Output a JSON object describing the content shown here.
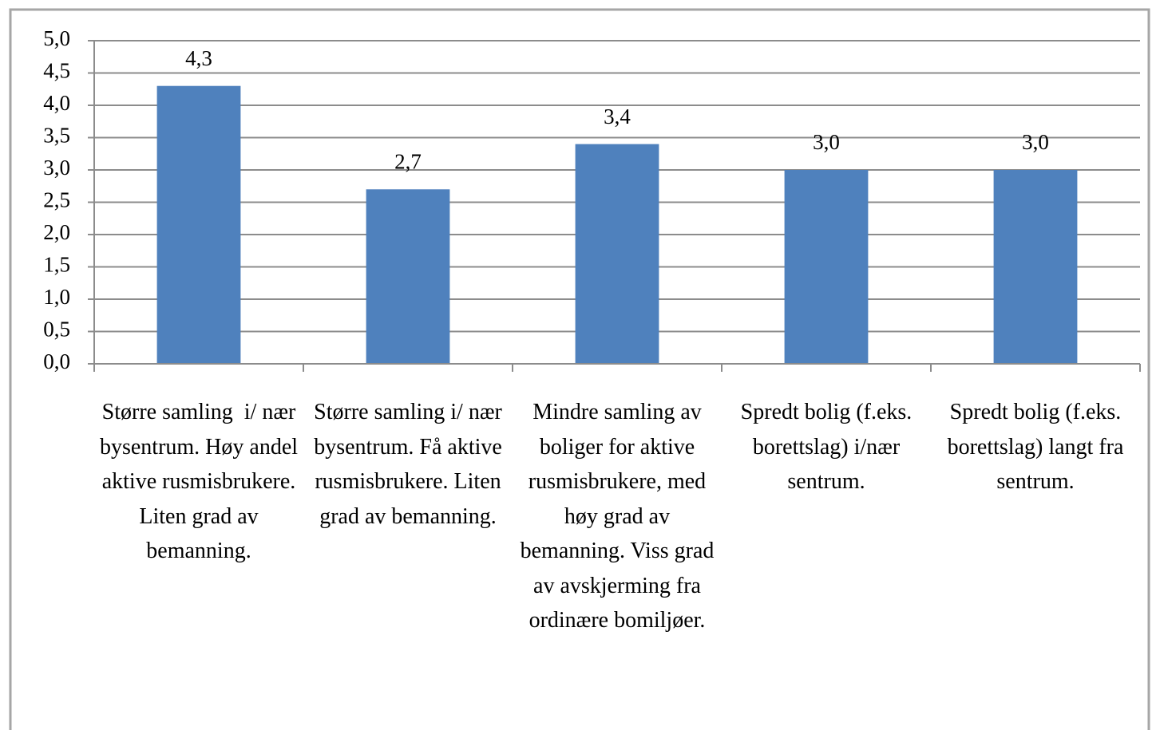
{
  "chart_data": {
    "type": "bar",
    "categories": [
      "Større samling  i/ nær bysentrum. Høy andel aktive rusmisbrukere. Liten grad av bemanning.",
      "Større samling i/ nær bysentrum. Få aktive rusmisbrukere. Liten grad av bemanning.",
      "Mindre samling av boliger for aktive rusmisbrukere, med høy grad av bemanning. Viss grad av avskjerming fra ordinære bomiljøer.",
      "Spredt bolig (f.eks. borettslag) i/nær sentrum.",
      "Spredt bolig (f.eks. borettslag) langt fra sentrum."
    ],
    "values": [
      4.3,
      2.7,
      3.4,
      3.0,
      3.0
    ],
    "value_labels": [
      "4,3",
      "2,7",
      "3,4",
      "3,0",
      "3,0"
    ],
    "color": "#4f81bd",
    "ylim": [
      0,
      5
    ],
    "yticks": [
      {
        "value": 0,
        "label": "0,0"
      },
      {
        "value": 0.5,
        "label": "0,5"
      },
      {
        "value": 1,
        "label": "1,0"
      },
      {
        "value": 1.5,
        "label": "1,5"
      },
      {
        "value": 2,
        "label": "2,0"
      },
      {
        "value": 2.5,
        "label": "2,5"
      },
      {
        "value": 3,
        "label": "3,0"
      },
      {
        "value": 3.5,
        "label": "3,5"
      },
      {
        "value": 4,
        "label": "4,0"
      },
      {
        "value": 4.5,
        "label": "4,5"
      },
      {
        "value": 5,
        "label": "5,0"
      }
    ],
    "grid": true
  }
}
